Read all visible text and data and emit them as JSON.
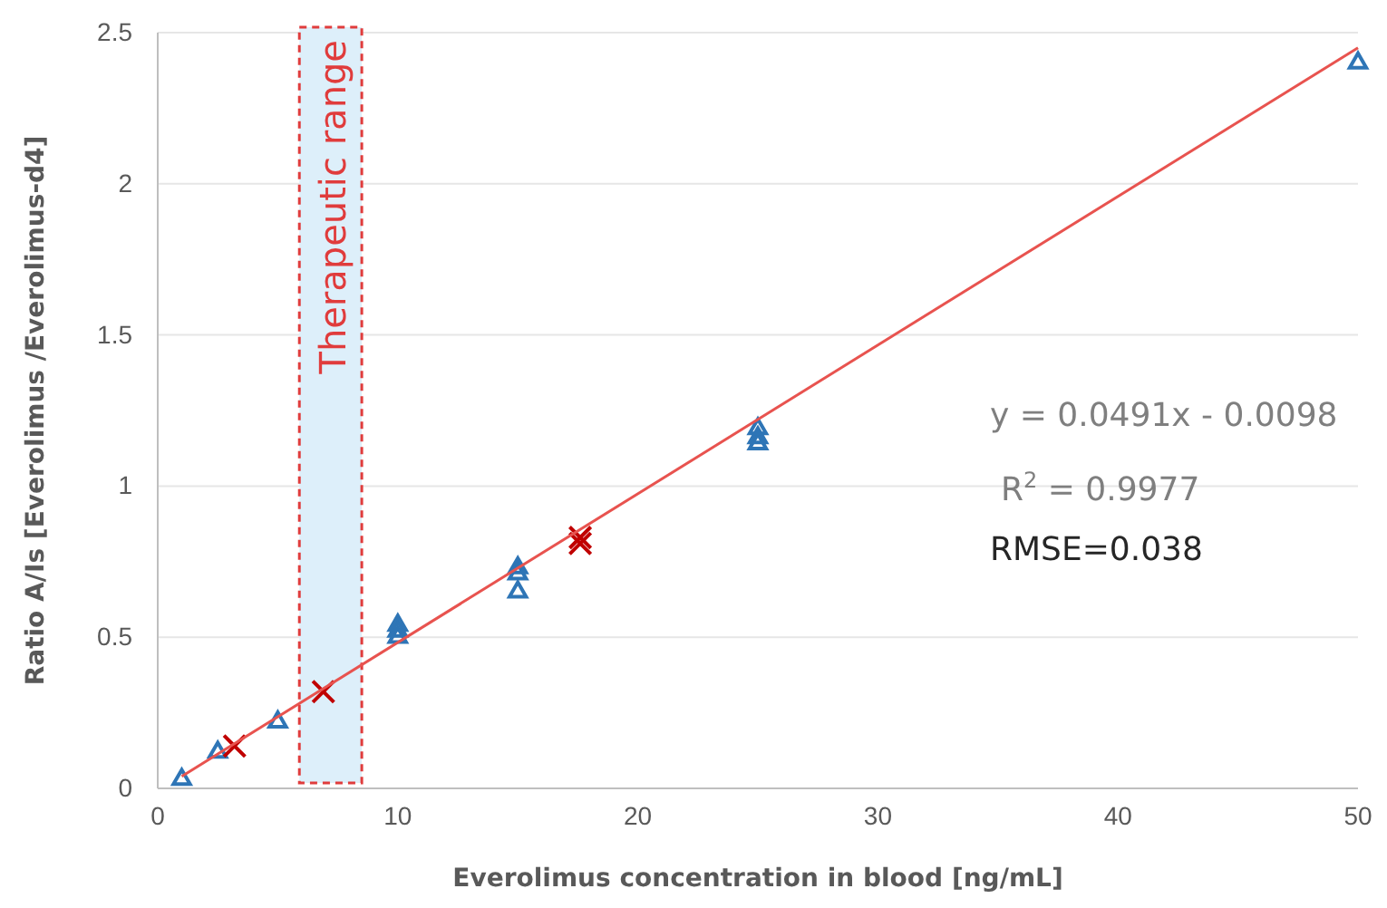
{
  "chart_data": {
    "type": "scatter",
    "xlabel": "Everolimus concentration  in blood [ng/mL]",
    "ylabel": "Ratio A/Is [Everolimus /Everolimus-d4]",
    "xlim": [
      0,
      50
    ],
    "xticks": [
      0,
      10,
      20,
      30,
      40,
      50
    ],
    "ylim": [
      0,
      2.5
    ],
    "yticks": [
      0,
      0.5,
      1,
      1.5,
      2,
      2.5
    ],
    "grid": "y",
    "series": [
      {
        "marker": "triangle",
        "color": "#2e75b6",
        "x": [
          1,
          2.5,
          5,
          10,
          10,
          10,
          15,
          15,
          15,
          25,
          25,
          25,
          50
        ],
        "values": [
          0.03,
          0.12,
          0.22,
          0.5,
          0.52,
          0.54,
          0.65,
          0.71,
          0.73,
          1.14,
          1.16,
          1.19,
          2.4
        ]
      },
      {
        "marker": "cross",
        "color": "#c00000",
        "x": [
          3.2,
          6.9,
          17.6,
          17.6
        ],
        "values": [
          0.14,
          0.32,
          0.81,
          0.83
        ]
      },
      {
        "type": "line",
        "marker": "none",
        "line_style": "solid",
        "color": "#e8534f",
        "x": [
          1,
          50
        ],
        "values": [
          0.04,
          2.45
        ]
      }
    ],
    "bands": [
      {
        "axis": "x",
        "from": 5.9,
        "to": 8.5,
        "label": "Therapeutic range",
        "color": "#ddeffa"
      }
    ],
    "annotations": [
      "y = 0.0491x - 0.0098",
      "R$^{2}$ = 0.9977",
      "RMSE=0.038"
    ]
  }
}
